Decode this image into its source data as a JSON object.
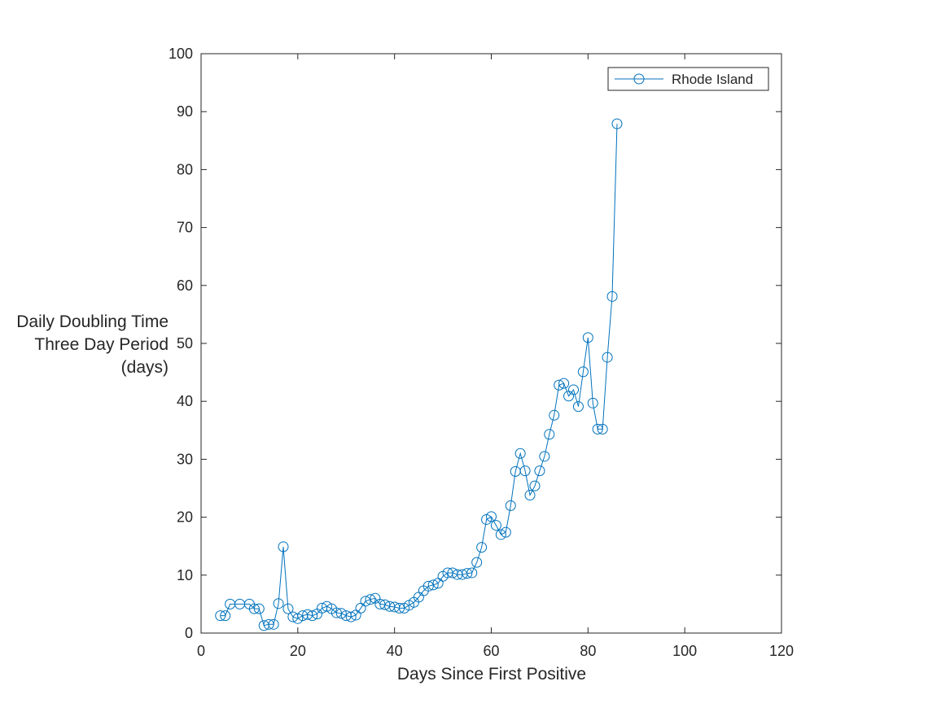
{
  "chart_data": {
    "type": "line",
    "marker": "circle",
    "xlabel": "Days Since First Positive",
    "ylabel": [
      "Daily Doubling Time",
      "Three Day Period",
      "(days)"
    ],
    "xlim": [
      0,
      120
    ],
    "ylim": [
      0,
      100
    ],
    "xticks": [
      0,
      20,
      40,
      60,
      80,
      100,
      120
    ],
    "yticks": [
      0,
      10,
      20,
      30,
      40,
      50,
      60,
      70,
      80,
      90,
      100
    ],
    "grid": false,
    "legend_position": "top-right",
    "series_color": "#0072BD",
    "series": [
      {
        "name": "Rhode Island",
        "x": [
          4,
          5,
          6,
          8,
          10,
          11,
          12,
          13,
          14,
          15,
          16,
          17,
          18,
          19,
          20,
          21,
          22,
          23,
          24,
          25,
          26,
          27,
          28,
          29,
          30,
          31,
          32,
          33,
          34,
          35,
          36,
          37,
          38,
          39,
          40,
          41,
          42,
          43,
          44,
          45,
          46,
          47,
          48,
          49,
          50,
          51,
          52,
          53,
          54,
          55,
          56,
          57,
          58,
          59,
          60,
          61,
          62,
          63,
          64,
          65,
          66,
          67,
          68,
          69,
          70,
          71,
          72,
          73,
          74,
          75,
          76,
          77,
          78,
          79,
          80,
          81,
          82,
          83,
          84,
          85,
          86
        ],
        "y": [
          3.0,
          3.0,
          5.0,
          5.0,
          5.0,
          4.2,
          4.2,
          1.3,
          1.5,
          1.5,
          5.1,
          14.9,
          4.2,
          2.8,
          2.5,
          3.0,
          3.2,
          3.0,
          3.3,
          4.3,
          4.6,
          4.2,
          3.5,
          3.4,
          3.0,
          2.8,
          3.1,
          4.3,
          5.5,
          5.8,
          6.0,
          5.0,
          4.9,
          4.6,
          4.5,
          4.3,
          4.3,
          4.8,
          5.3,
          6.2,
          7.3,
          8.1,
          8.3,
          8.6,
          9.8,
          10.4,
          10.4,
          10.1,
          10.1,
          10.3,
          10.4,
          12.2,
          14.8,
          19.6,
          20.1,
          18.6,
          17.0,
          17.4,
          22.0,
          27.9,
          31.0,
          28.0,
          23.8,
          25.4,
          28.0,
          30.5,
          34.3,
          37.6,
          42.8,
          43.1,
          40.9,
          42.0,
          39.1,
          45.1,
          51.0,
          39.7,
          35.2,
          35.2,
          47.6,
          58.1,
          87.9
        ]
      }
    ]
  }
}
